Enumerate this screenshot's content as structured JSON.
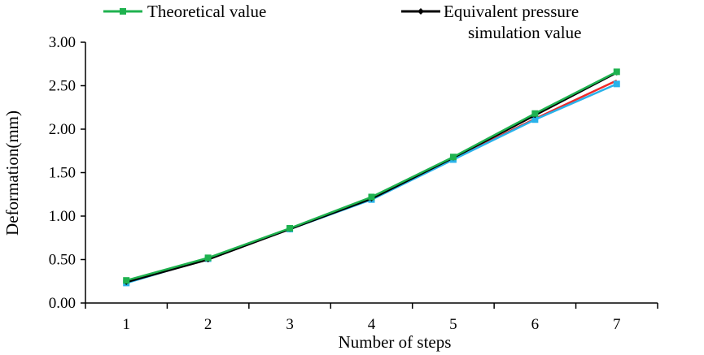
{
  "chart_data": {
    "type": "line",
    "title": "",
    "xlabel": "Number of steps",
    "ylabel": "Deformation(mm)",
    "categories": [
      "1",
      "2",
      "3",
      "4",
      "5",
      "6",
      "7"
    ],
    "ylim": [
      0,
      3
    ],
    "yticks": [
      "0.00",
      "0.50",
      "1.00",
      "1.50",
      "2.00",
      "2.50",
      "3.00"
    ],
    "grid": false,
    "legend_position": "top",
    "series": [
      {
        "name": "Theoretical value",
        "color": "#1fb24f",
        "marker": "square",
        "values": [
          0.26,
          0.52,
          0.86,
          1.22,
          1.68,
          2.18,
          2.66
        ]
      },
      {
        "name": "Equivalent pressure simulation value",
        "color": "#000000",
        "marker": "diamond",
        "values": [
          0.24,
          0.5,
          0.85,
          1.2,
          1.67,
          2.16,
          2.65
        ]
      },
      {
        "name": "",
        "color": "#ee2a2a",
        "marker": "none",
        "values": [
          0.25,
          0.51,
          0.85,
          1.21,
          1.66,
          2.12,
          2.56
        ]
      },
      {
        "name": "",
        "color": "#29b2ea",
        "marker": "square",
        "values": [
          0.23,
          0.51,
          0.85,
          1.19,
          1.65,
          2.11,
          2.52
        ]
      }
    ]
  }
}
